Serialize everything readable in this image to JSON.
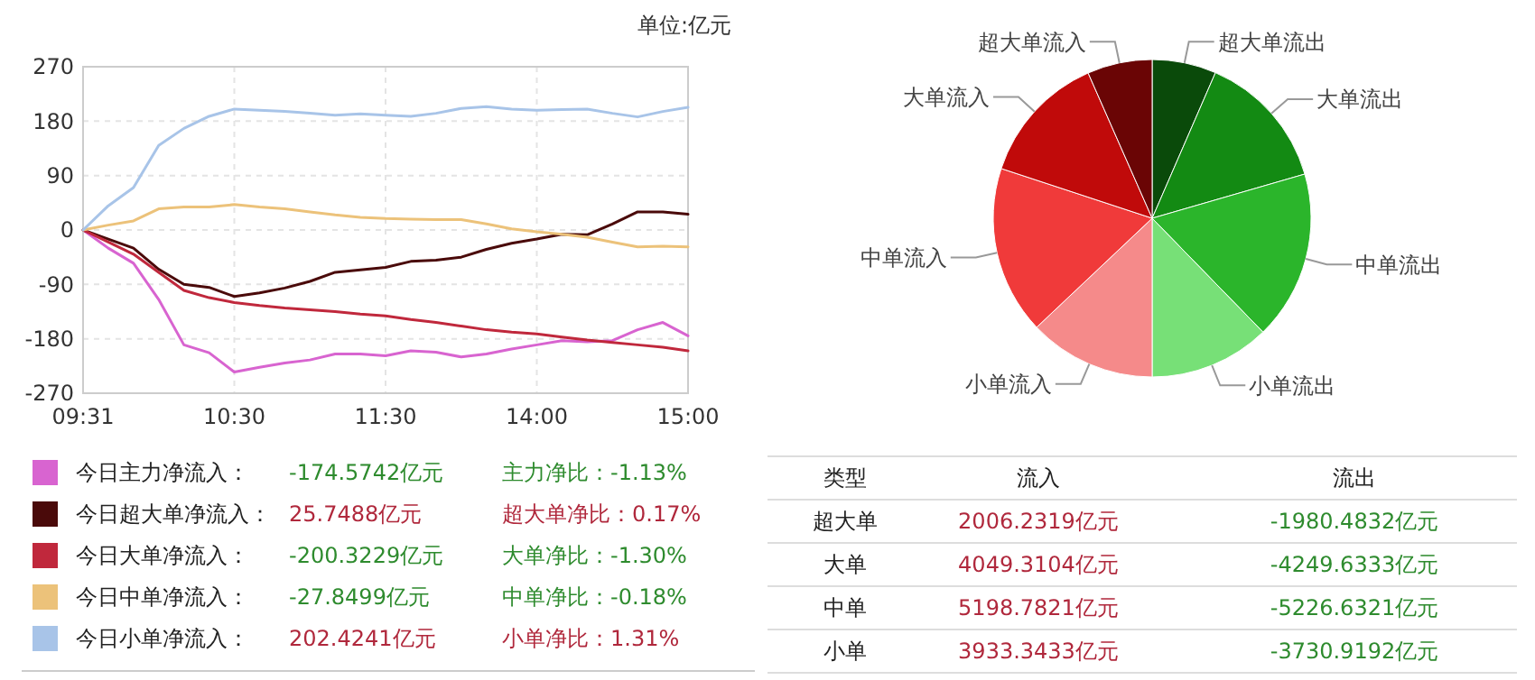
{
  "chart_data": [
    {
      "type": "line",
      "subtitle": "单位:亿元",
      "categories": [
        "09:31",
        null,
        null,
        null,
        null,
        null,
        "10:30",
        null,
        null,
        null,
        null,
        null,
        "11:30",
        null,
        null,
        null,
        null,
        null,
        "14:00",
        null,
        null,
        null,
        null,
        null,
        "15:00"
      ],
      "ylim": [
        -270,
        270
      ],
      "yticks": [
        -270,
        -180,
        -90,
        0,
        90,
        180,
        270
      ],
      "grid": true,
      "legend": "bottom",
      "series": [
        {
          "name": "今日主力净流入：",
          "color": "#d864d0",
          "values": [
            0,
            -30,
            -55,
            -115,
            -190,
            -203,
            -235,
            -227,
            -220,
            -215,
            -205,
            -205,
            -208,
            -200,
            -202,
            -210,
            -205,
            -197,
            -190,
            -183,
            -185,
            -183,
            -165,
            -153,
            -175
          ]
        },
        {
          "name": "今日超大单净流入：",
          "color": "#4a0a0a",
          "values": [
            0,
            -15,
            -30,
            -65,
            -90,
            -95,
            -110,
            -104,
            -96,
            -85,
            -70,
            -66,
            -62,
            -52,
            -50,
            -45,
            -32,
            -22,
            -15,
            -7,
            -8,
            10,
            30,
            30,
            26
          ]
        },
        {
          "name": "今日大单净流入：",
          "color": "#c0283c",
          "values": [
            0,
            -20,
            -40,
            -70,
            -100,
            -112,
            -120,
            -125,
            -129,
            -132,
            -135,
            -139,
            -142,
            -148,
            -153,
            -159,
            -165,
            -169,
            -172,
            -177,
            -182,
            -186,
            -190,
            -194,
            -200
          ]
        },
        {
          "name": "今日中单净流入：",
          "color": "#ecc27a",
          "values": [
            0,
            8,
            15,
            35,
            38,
            38,
            42,
            38,
            35,
            30,
            25,
            21,
            19,
            18,
            17,
            17,
            10,
            2,
            -3,
            -7,
            -12,
            -20,
            -28,
            -27,
            -28
          ]
        },
        {
          "name": "今日小单净流入：",
          "color": "#a8c4e8",
          "values": [
            0,
            40,
            70,
            140,
            168,
            188,
            200,
            198,
            196,
            193,
            190,
            192,
            190,
            188,
            193,
            201,
            204,
            200,
            198,
            199,
            200,
            193,
            187,
            196,
            203
          ]
        }
      ],
      "annotations": [
        "-174.5742亿元",
        "主力净比：-1.13%",
        "25.7488亿元",
        "超大单净比：0.17%",
        "-200.3229亿元",
        "大单净比：-1.30%",
        "-27.8499亿元",
        "中单净比：-0.18%",
        "202.4241亿元",
        "小单净比：1.31%"
      ]
    },
    {
      "type": "pie",
      "categories": [
        "超大单流出",
        "大单流出",
        "中单流出",
        "小单流出",
        "小单流入",
        "中单流入",
        "大单流入",
        "超大单流入"
      ],
      "values": [
        6.52,
        13.99,
        17.21,
        12.28,
        12.95,
        17.12,
        13.33,
        6.6
      ],
      "colors": [
        "#0a4a0a",
        "#138a13",
        "#2bb52b",
        "#77e077",
        "#f58a8a",
        "#f03a3a",
        "#c00a0a",
        "#6a0505"
      ]
    },
    {
      "type": "other",
      "annotations": [
        "类型",
        "流入",
        "流出",
        "超大单",
        "2006.2319亿元",
        "-1980.4832亿元",
        "大单",
        "4049.3104亿元",
        "-4249.6333亿元",
        "中单",
        "5198.7821亿元",
        "-5226.6321亿元",
        "小单",
        "3933.3433亿元",
        "-3730.9192亿元"
      ]
    }
  ]
}
